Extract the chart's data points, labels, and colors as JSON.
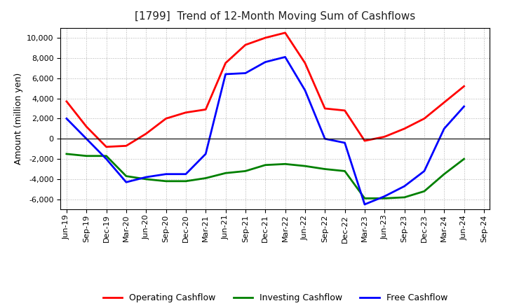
{
  "title": "[1799]  Trend of 12-Month Moving Sum of Cashflows",
  "ylabel": "Amount (million yen)",
  "ylim": [
    -7000,
    11000
  ],
  "yticks": [
    -6000,
    -4000,
    -2000,
    0,
    2000,
    4000,
    6000,
    8000,
    10000
  ],
  "x_labels": [
    "Jun-19",
    "Sep-19",
    "Dec-19",
    "Mar-20",
    "Jun-20",
    "Sep-20",
    "Dec-20",
    "Mar-21",
    "Jun-21",
    "Sep-21",
    "Dec-21",
    "Mar-22",
    "Jun-22",
    "Sep-22",
    "Dec-22",
    "Mar-23",
    "Jun-23",
    "Sep-23",
    "Dec-23",
    "Mar-24",
    "Jun-24",
    "Sep-24"
  ],
  "operating": [
    3700,
    1200,
    -800,
    -700,
    500,
    2000,
    2600,
    2900,
    7500,
    9300,
    10000,
    10500,
    7500,
    3000,
    2800,
    -200,
    200,
    1000,
    2000,
    3600,
    5200,
    null
  ],
  "investing": [
    -1500,
    -1700,
    -1700,
    -3700,
    -4000,
    -4200,
    -4200,
    -3900,
    -3400,
    -3200,
    -2600,
    -2500,
    -2700,
    -3000,
    -3200,
    -5900,
    -5900,
    -5800,
    -5200,
    -3500,
    -2000,
    null
  ],
  "free": [
    2000,
    0,
    -2000,
    -4300,
    -3800,
    -3500,
    -3500,
    -1500,
    6400,
    6500,
    7600,
    8100,
    4800,
    0,
    -400,
    -6500,
    -5700,
    -4700,
    -3200,
    1000,
    3200,
    null
  ],
  "operating_color": "#ff0000",
  "investing_color": "#008000",
  "free_color": "#0000ff",
  "line_width": 2.0,
  "background_color": "#ffffff",
  "grid_color": "#b0b0b0",
  "title_fontsize": 11,
  "ylabel_fontsize": 9,
  "tick_fontsize": 8,
  "legend_fontsize": 9
}
